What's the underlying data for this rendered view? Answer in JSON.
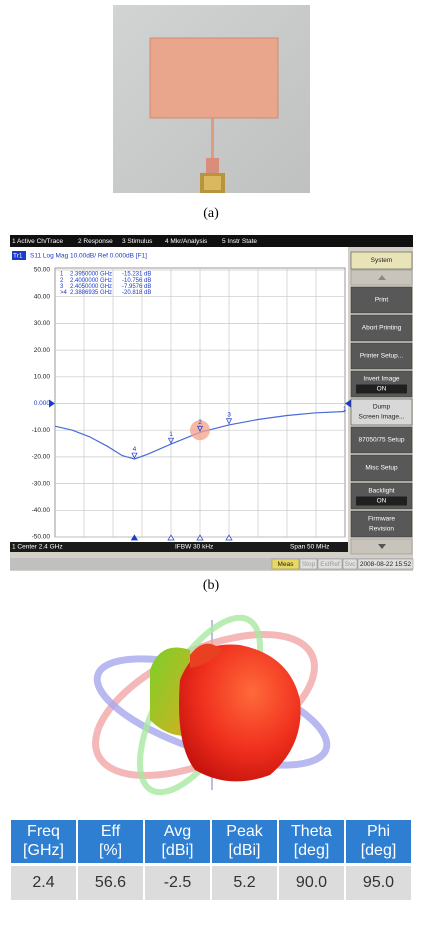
{
  "caption_a": "(a)",
  "caption_b": "(b)",
  "vna": {
    "menu": [
      "1 Active Ch/Trace",
      "2 Response",
      "3 Stimulus",
      "4 Mkr/Analysis",
      "5 Instr State"
    ],
    "trace_id": "Tr1",
    "trace_header": "S11 Log Mag 10.00dB/ Ref 0.000dB [F1]",
    "ylim": [
      -50,
      50
    ],
    "yticks": [
      {
        "value": 50,
        "label": "50.00"
      },
      {
        "value": 40,
        "label": "40.00"
      },
      {
        "value": 30,
        "label": "30.00"
      },
      {
        "value": 20,
        "label": "20.00"
      },
      {
        "value": 10,
        "label": "10.00"
      },
      {
        "value": 0,
        "label": "0.000"
      },
      {
        "value": -10,
        "label": "-10.00"
      },
      {
        "value": -20,
        "label": "-20.00"
      },
      {
        "value": -30,
        "label": "-30.00"
      },
      {
        "value": -40,
        "label": "-40.00"
      },
      {
        "value": -50,
        "label": "-50.00"
      }
    ],
    "xlim": [
      2.375,
      2.425
    ],
    "curve": {
      "x": [
        2.375,
        2.378,
        2.381,
        2.384,
        2.3866,
        2.3887,
        2.391,
        2.395,
        2.4,
        2.405,
        2.41,
        2.415,
        2.42,
        2.425
      ],
      "values": [
        -8.5,
        -10,
        -12.5,
        -16,
        -19.5,
        -20.8,
        -19,
        -15.2,
        -10.8,
        -8,
        -6,
        -4.5,
        -3.5,
        -3
      ]
    },
    "markers": [
      {
        "label": "1",
        "plot_label": "1",
        "freq": "2.3950000 GHz",
        "value": "-15.231 dB"
      },
      {
        "label": "2",
        "plot_label": "2",
        "freq": "2.4000000 GHz",
        "value": "-10.756 dB"
      },
      {
        "label": "3",
        "plot_label": "3",
        "freq": "2.4050000 GHz",
        "value": "-7.9576 dB"
      },
      {
        "label": ">4",
        "plot_label": "4",
        "freq": "2.3886935 GHz",
        "value": "-20.818 dB"
      }
    ],
    "ref_label": "1",
    "status": {
      "center": "1 Center 2.4 GHz",
      "ifbw": "IFBW 30 kHz",
      "span": "Span 50 MHz"
    },
    "bottom_bar": [
      "Meas",
      "Stop",
      "ExtRef",
      "Svc",
      "2008-08-22 15:52"
    ],
    "softkeys": [
      [
        "System"
      ],
      [
        "Print"
      ],
      [
        "Abort Printing"
      ],
      [
        "Printer Setup..."
      ],
      [
        "Invert Image",
        "ON"
      ],
      [
        "Dump",
        "Screen Image..."
      ],
      [
        "87050/75 Setup"
      ],
      [
        "Misc Setup"
      ],
      [
        "Backlight",
        "ON"
      ],
      [
        "Firmware",
        "Revision"
      ]
    ]
  },
  "table": {
    "header": [
      [
        "Freq",
        "[GHz]"
      ],
      [
        "Eff",
        "[%]"
      ],
      [
        "Avg",
        "[dBi]"
      ],
      [
        "Peak",
        "[dBi]"
      ],
      [
        "Theta",
        "[deg]"
      ],
      [
        "Phi",
        "[deg]"
      ]
    ],
    "rows": [
      [
        "2.4",
        "56.6",
        "-2.5",
        "5.2",
        "90.0",
        "95.0"
      ]
    ]
  }
}
